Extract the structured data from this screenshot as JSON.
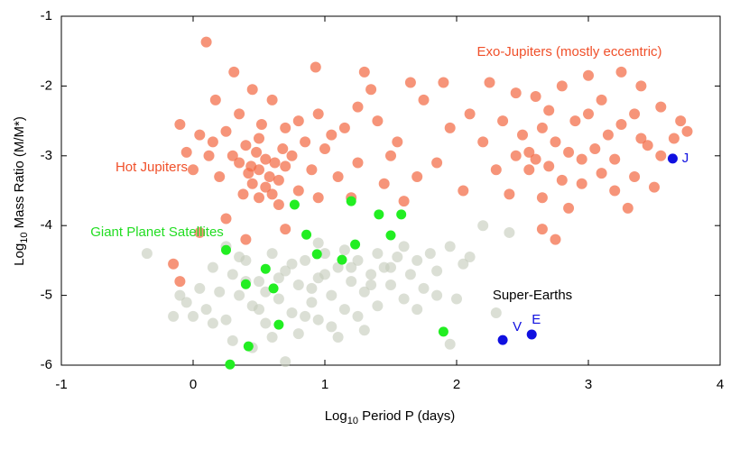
{
  "chart_data": {
    "type": "scatter",
    "x_label": {
      "prefix": "Log",
      "sub": "10",
      "rest": " Period P (days)"
    },
    "y_label": {
      "prefix": "Log",
      "sub": "10",
      "rest": " Mass Ratio (M/M*)"
    },
    "xlim": [
      -1,
      4
    ],
    "xticks": [
      -1,
      0,
      1,
      2,
      3,
      4
    ],
    "ylim": [
      -6,
      -1
    ],
    "yticks": [
      -1,
      -2,
      -3,
      -4,
      -5,
      -6
    ],
    "annotations": [
      "Exo-Jupiters (mostly eccentric)",
      "Hot Jupiters",
      "Giant Planet Satellites",
      "Super-Earths"
    ],
    "annotation_colors": [
      "#f0502a",
      "#f0502a",
      "#22dd22",
      "#000000"
    ],
    "series": [
      {
        "color": "#f26b45",
        "x": [
          0.1,
          0.31,
          0.45,
          0.6,
          0.17,
          0.35,
          0.52,
          0.7,
          0.8,
          0.95,
          -0.1,
          0.05,
          0.15,
          0.25,
          0.4,
          0.48,
          0.55,
          0.62,
          0.5,
          0.42,
          0.58,
          0.35,
          0.3,
          0.45,
          0.55,
          0.65,
          0.7,
          0.38,
          0.5,
          0.6,
          0.75,
          0.85,
          0.9,
          1.0,
          1.05,
          1.1,
          0.2,
          0.12,
          -0.05,
          0.0,
          0.25,
          0.65,
          0.8,
          0.95,
          1.2,
          1.3,
          0.93,
          0.5,
          0.68,
          0.44,
          1.25,
          1.4,
          1.55,
          1.75,
          1.9,
          1.65,
          1.35,
          1.5,
          1.7,
          1.85,
          1.95,
          2.05,
          1.6,
          1.45,
          1.25,
          1.15,
          -0.15,
          -0.1,
          0.05,
          0.4,
          0.7,
          2.1,
          2.25,
          2.45,
          2.6,
          2.8,
          3.0,
          3.25,
          3.4,
          3.55,
          3.7,
          3.75,
          2.35,
          2.5,
          2.65,
          2.75,
          2.85,
          2.95,
          3.05,
          3.15,
          3.25,
          3.35,
          3.45,
          3.55,
          3.65,
          2.55,
          2.6,
          2.7,
          2.55,
          2.45,
          2.8,
          2.95,
          3.1,
          3.2,
          3.35,
          3.5,
          2.4,
          2.65,
          2.85,
          3.0,
          3.1,
          2.9,
          2.2,
          2.3,
          3.3,
          2.75,
          2.65,
          3.4,
          2.7,
          3.2
        ],
        "y": [
          -1.37,
          -1.8,
          -2.05,
          -2.2,
          -2.2,
          -2.4,
          -2.55,
          -2.6,
          -2.5,
          -2.4,
          -2.55,
          -2.7,
          -2.8,
          -2.65,
          -2.85,
          -2.95,
          -3.05,
          -3.1,
          -3.2,
          -3.25,
          -3.3,
          -3.1,
          -3.0,
          -3.4,
          -3.45,
          -3.35,
          -3.15,
          -3.55,
          -3.6,
          -3.55,
          -3.0,
          -2.8,
          -3.2,
          -2.9,
          -2.7,
          -3.3,
          -3.3,
          -3.0,
          -2.95,
          -3.2,
          -3.9,
          -3.7,
          -3.5,
          -3.6,
          -3.6,
          -1.8,
          -1.73,
          -2.75,
          -2.9,
          -3.15,
          -2.3,
          -2.5,
          -2.8,
          -2.2,
          -1.95,
          -1.95,
          -2.05,
          -3.0,
          -3.3,
          -3.1,
          -2.6,
          -3.5,
          -3.65,
          -3.4,
          -3.1,
          -2.6,
          -4.55,
          -4.8,
          -4.1,
          -4.2,
          -4.05,
          -2.4,
          -1.95,
          -2.1,
          -2.15,
          -2.0,
          -1.85,
          -1.8,
          -2.0,
          -2.3,
          -2.5,
          -2.65,
          -2.5,
          -2.7,
          -2.6,
          -2.8,
          -2.95,
          -3.05,
          -2.9,
          -2.7,
          -2.55,
          -2.4,
          -2.85,
          -3.0,
          -2.75,
          -2.95,
          -3.05,
          -3.15,
          -3.2,
          -3.0,
          -3.35,
          -3.4,
          -3.25,
          -3.5,
          -3.3,
          -3.45,
          -3.55,
          -3.6,
          -3.75,
          -2.4,
          -2.2,
          -2.5,
          -2.8,
          -3.2,
          -3.75,
          -4.2,
          -4.05,
          -2.75,
          -2.35,
          -3.05
        ]
      },
      {
        "color": "#c5cbbb",
        "x": [
          -0.35,
          -0.15,
          -0.05,
          0.05,
          0.1,
          0.15,
          0.2,
          0.25,
          0.3,
          0.35,
          0.4,
          0.45,
          0.5,
          0.55,
          0.6,
          0.65,
          0.7,
          0.75,
          0.8,
          0.85,
          0.9,
          0.95,
          1.0,
          1.05,
          1.1,
          1.15,
          1.2,
          1.25,
          1.3,
          1.35,
          1.4,
          1.45,
          1.5,
          1.55,
          1.6,
          1.65,
          1.7,
          1.75,
          1.8,
          1.85,
          1.95,
          2.05,
          2.2,
          2.3,
          2.4,
          2.0,
          1.95,
          0.45,
          0.8,
          0.7,
          1.1,
          1.3,
          0.6,
          0.3,
          0.25,
          0.95,
          1.05,
          0.5,
          0.85,
          1.15,
          1.6,
          1.4,
          0.35,
          0.65,
          0.75,
          0.9,
          1.0,
          1.2,
          1.35,
          1.5,
          0.55,
          0.4,
          0.15,
          0.0,
          -0.1,
          1.7,
          1.85,
          2.1,
          1.25,
          0.95
        ],
        "y": [
          -4.4,
          -5.3,
          -5.1,
          -4.9,
          -5.2,
          -4.6,
          -4.95,
          -5.35,
          -4.7,
          -5.0,
          -4.5,
          -5.15,
          -4.8,
          -5.4,
          -4.4,
          -5.05,
          -4.65,
          -5.25,
          -4.85,
          -4.5,
          -5.1,
          -4.75,
          -4.4,
          -5.0,
          -4.6,
          -5.2,
          -4.8,
          -4.5,
          -4.95,
          -4.7,
          -5.15,
          -4.6,
          -4.85,
          -4.45,
          -5.05,
          -4.7,
          -4.5,
          -4.9,
          -4.4,
          -4.65,
          -4.3,
          -4.55,
          -4.0,
          -5.25,
          -4.1,
          -5.05,
          -5.7,
          -5.75,
          -5.55,
          -5.95,
          -5.6,
          -5.5,
          -5.6,
          -5.65,
          -4.3,
          -4.25,
          -5.45,
          -5.2,
          -5.3,
          -4.35,
          -4.3,
          -4.4,
          -4.45,
          -4.75,
          -4.55,
          -4.9,
          -4.7,
          -4.6,
          -4.85,
          -4.6,
          -4.95,
          -4.8,
          -5.4,
          -5.3,
          -5.0,
          -5.2,
          -5.0,
          -4.45,
          -5.3,
          -5.35
        ]
      },
      {
        "color": "#22ee22",
        "x": [
          0.77,
          1.2,
          1.41,
          1.58,
          0.86,
          1.5,
          0.25,
          1.23,
          0.94,
          1.13,
          0.55,
          0.4,
          0.61,
          0.65,
          0.42,
          0.28,
          1.9
        ],
        "y": [
          -3.7,
          -3.65,
          -3.84,
          -3.84,
          -4.13,
          -4.14,
          -4.35,
          -4.27,
          -4.41,
          -4.49,
          -4.62,
          -4.84,
          -4.9,
          -5.42,
          -5.73,
          -5.99,
          -5.52
        ]
      },
      {
        "color": "#1010e0",
        "labels": [
          "V",
          "E",
          "J"
        ],
        "x": [
          2.35,
          2.57,
          3.64
        ],
        "y": [
          -5.64,
          -5.56,
          -3.04
        ]
      }
    ]
  }
}
